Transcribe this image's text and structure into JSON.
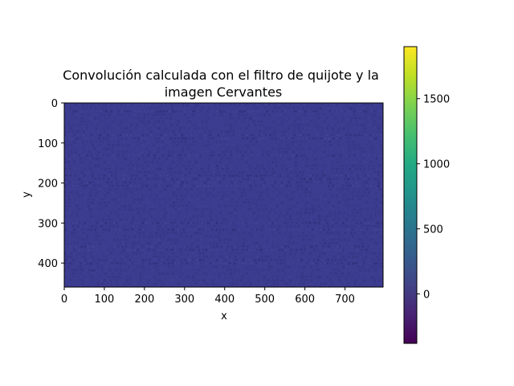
{
  "chart_data": {
    "type": "heatmap",
    "title_lines": [
      "Convolución calculada con el filtro de quijote y la",
      "imagen Cervantes"
    ],
    "xlabel": "x",
    "ylabel": "y",
    "xlim": [
      0,
      795
    ],
    "ylim": [
      460,
      0
    ],
    "xticks": [
      0,
      100,
      200,
      300,
      400,
      500,
      600,
      700
    ],
    "yticks": [
      0,
      100,
      200,
      300,
      400
    ],
    "colormap": "viridis",
    "colorbar": {
      "vmin": -380,
      "vmax": 1900,
      "ticks": [
        0,
        500,
        1000,
        1500
      ]
    },
    "background_value": 0,
    "pattern": "low-amplitude horizontal banding of small dark/light streaks across the whole image; values mostly near 0",
    "grid": false
  },
  "colors": {
    "viridis_low": "#440154",
    "viridis_base": "#3b3b8f",
    "viridis_high": "#fde725"
  }
}
